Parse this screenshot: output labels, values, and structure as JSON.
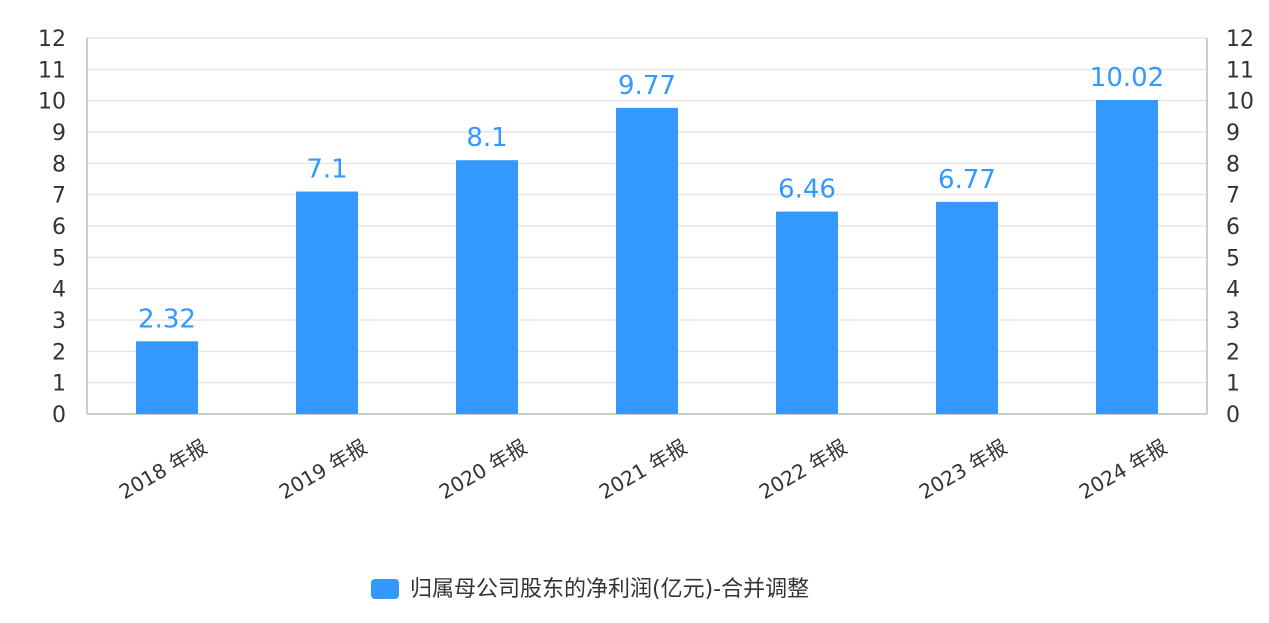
{
  "chart_data": {
    "type": "bar",
    "categories": [
      "2018 年报",
      "2019 年报",
      "2020 年报",
      "2021 年报",
      "2022 年报",
      "2023 年报",
      "2024 年报"
    ],
    "series": [
      {
        "name": "归属母公司股东的净利润(亿元)-合并调整",
        "values": [
          2.32,
          7.1,
          8.1,
          9.77,
          6.46,
          6.77,
          10.02
        ],
        "color": "#3399ff"
      }
    ],
    "data_labels": [
      "2.32",
      "7.1",
      "8.1",
      "9.77",
      "6.46",
      "6.77",
      "10.02"
    ],
    "ylim": [
      0,
      12
    ],
    "yticks": [
      "0",
      "1",
      "2",
      "3",
      "4",
      "5",
      "6",
      "7",
      "8",
      "9",
      "10",
      "11",
      "12"
    ],
    "y_axis_both_sides": true,
    "grid": true,
    "legend_position": "bottom-center",
    "colors": {
      "bar": "#3399ff",
      "label": "#3399ff",
      "grid": "#e6e6e6",
      "axis": "#cccccc"
    }
  }
}
